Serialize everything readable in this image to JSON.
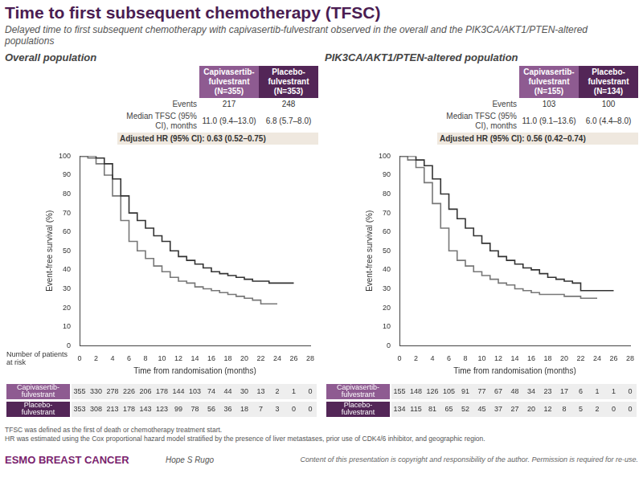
{
  "title": "Time to first subsequent chemotherapy (TFSC)",
  "subtitle": "Delayed time to first subsequent chemotherapy with capivasertib-fulvestrant observed in the overall and the PIK3CA/AKT1/PTEN-altered populations",
  "risk_table_title": "Number of patients at risk",
  "stats_labels": {
    "events": "Events",
    "median": "Median TFSC (95% CI), months"
  },
  "footnotes": [
    "TFSC was defined as the first of death or chemotherapy treatment start.",
    "HR was estimated using the Cox proportional hazard model stratified by the presence of liver metastases, prior use of CDK4/6 inhibitor, and geographic region."
  ],
  "footer": {
    "brand": "ESMO BREAST CANCER",
    "presenter": "Hope S Rugo",
    "copyright": "Content of this presentation is copyright and responsibility of the author. Permission is required for re-use."
  },
  "chart_data": [
    {
      "type": "line",
      "title": "Overall population",
      "x_label": "Time from randomisation (months)",
      "y_label": "Event-free survival (%)",
      "xlim": [
        0,
        28
      ],
      "xticks": [
        0,
        2,
        4,
        6,
        8,
        10,
        12,
        14,
        16,
        18,
        20,
        22,
        24,
        26,
        28
      ],
      "ylim": [
        0,
        100
      ],
      "yticks": [
        0,
        10,
        20,
        30,
        40,
        50,
        60,
        70,
        80,
        90,
        100
      ],
      "grid": false,
      "line_style": "step",
      "hr_label": "Adjusted HR (95% CI):",
      "hr": "0.63 (0.52–0.75)",
      "x": [
        0,
        1,
        2,
        3,
        4,
        5,
        6,
        7,
        8,
        9,
        10,
        11,
        12,
        13,
        14,
        15,
        16,
        17,
        18,
        19,
        20,
        21,
        22,
        23,
        24,
        25,
        26
      ],
      "series": [
        {
          "name": "Capivasertib-fulvestrant",
          "n_label": "(N=355)",
          "color": "#333333",
          "events": 217,
          "median": "11.0 (9.4–13.0)",
          "values": [
            100,
            100,
            99,
            96,
            88,
            79,
            70,
            66,
            62,
            58,
            55,
            50,
            47,
            45,
            43,
            41,
            39,
            38,
            37,
            36,
            35,
            34,
            34,
            33,
            33,
            33,
            33
          ],
          "at_risk": [
            355,
            330,
            278,
            226,
            206,
            178,
            144,
            103,
            74,
            44,
            30,
            13,
            2,
            1,
            0
          ]
        },
        {
          "name": "Placebo-fulvestrant",
          "n_label": "(N=353)",
          "color": "#777777",
          "events": 248,
          "median": "6.8 (5.7–8.0)",
          "values": [
            100,
            99,
            96,
            90,
            79,
            66,
            55,
            50,
            46,
            42,
            39,
            36,
            34,
            33,
            31,
            30,
            29,
            28,
            27,
            26,
            25,
            24,
            22,
            22,
            22,
            null,
            null
          ],
          "at_risk": [
            353,
            308,
            213,
            178,
            143,
            123,
            99,
            78,
            56,
            36,
            18,
            7,
            3,
            0,
            0
          ]
        }
      ]
    },
    {
      "type": "line",
      "title": "PIK3CA/AKT1/PTEN-altered population",
      "x_label": "Time from randomisation (months)",
      "y_label": "Event-free survival (%)",
      "xlim": [
        0,
        28
      ],
      "xticks": [
        0,
        2,
        4,
        6,
        8,
        10,
        12,
        14,
        16,
        18,
        20,
        22,
        24,
        26,
        28
      ],
      "ylim": [
        0,
        100
      ],
      "yticks": [
        0,
        10,
        20,
        30,
        40,
        50,
        60,
        70,
        80,
        90,
        100
      ],
      "grid": false,
      "line_style": "step",
      "hr_label": "Adjusted HR (95% CI):",
      "hr": "0.56 (0.42–0.74)",
      "x": [
        0,
        1,
        2,
        3,
        4,
        5,
        6,
        7,
        8,
        9,
        10,
        11,
        12,
        13,
        14,
        15,
        16,
        17,
        18,
        19,
        20,
        21,
        22,
        23,
        24,
        25,
        26
      ],
      "series": [
        {
          "name": "Capivasertib-fulvestrant",
          "n_label": "(N=155)",
          "color": "#333333",
          "events": 103,
          "median": "11.0 (9.1–13.6)",
          "values": [
            100,
            100,
            98,
            95,
            88,
            80,
            72,
            67,
            62,
            58,
            54,
            50,
            47,
            45,
            43,
            41,
            40,
            38,
            36,
            35,
            34,
            33,
            29,
            29,
            29,
            29,
            29
          ],
          "at_risk": [
            155,
            148,
            126,
            105,
            91,
            77,
            67,
            48,
            34,
            23,
            17,
            6,
            1,
            1,
            0
          ]
        },
        {
          "name": "Placebo-fulvestrant",
          "n_label": "(N=134)",
          "color": "#777777",
          "events": 100,
          "median": "6.0 (4.4–8.0)",
          "values": [
            100,
            98,
            94,
            86,
            75,
            62,
            50,
            45,
            42,
            39,
            37,
            35,
            33,
            32,
            30,
            29,
            28,
            27,
            27,
            27,
            26,
            26,
            25,
            25,
            25,
            null,
            null
          ],
          "at_risk": [
            134,
            115,
            81,
            65,
            52,
            45,
            37,
            27,
            20,
            12,
            8,
            5,
            2,
            0,
            0
          ]
        }
      ]
    }
  ]
}
